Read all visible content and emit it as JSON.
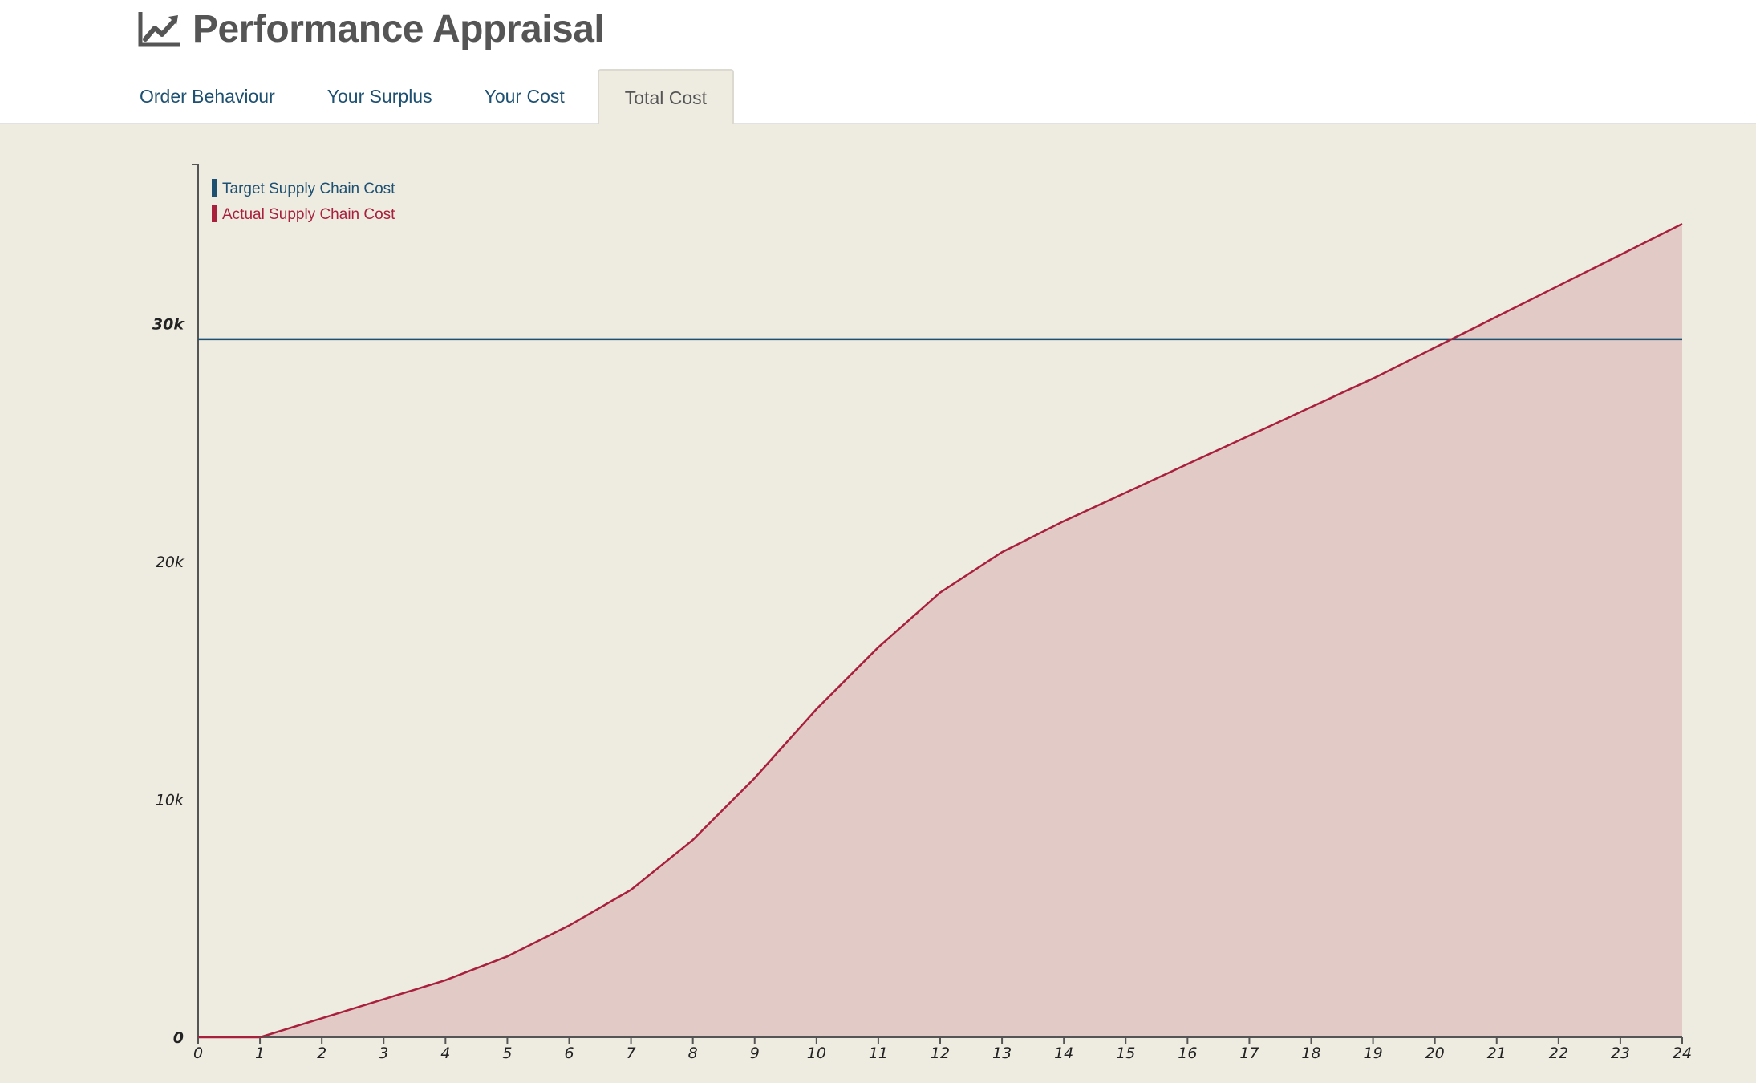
{
  "header": {
    "title": "Performance Appraisal",
    "title_icon": "line-chart-icon"
  },
  "tabs": [
    {
      "label": "Order Behaviour",
      "active": false
    },
    {
      "label": "Your Surplus",
      "active": false
    },
    {
      "label": "Your Cost",
      "active": false
    },
    {
      "label": "Total Cost",
      "active": true
    }
  ],
  "colors": {
    "target": "#1d5071",
    "actual": "#a8203c",
    "actual_fill": "#e2cbc7",
    "background": "#eeebe1",
    "axis": "#555555"
  },
  "chart_data": {
    "type": "area",
    "title": "",
    "xlabel": "",
    "ylabel": "",
    "x": [
      0,
      1,
      2,
      3,
      4,
      5,
      6,
      7,
      8,
      9,
      10,
      11,
      12,
      13,
      14,
      15,
      16,
      17,
      18,
      19,
      20,
      21,
      22,
      23,
      24
    ],
    "xlim": [
      0,
      24
    ],
    "ylim": [
      0,
      36700
    ],
    "y_ticks": [
      {
        "value": 0,
        "label": "0"
      },
      {
        "value": 10000,
        "label": "10k"
      },
      {
        "value": 20000,
        "label": "20k"
      },
      {
        "value": 30000,
        "label": "30k"
      }
    ],
    "x_tick_labels": [
      "0",
      "1",
      "2",
      "3",
      "4",
      "5",
      "6",
      "7",
      "8",
      "9",
      "10",
      "11",
      "12",
      "13",
      "14",
      "15",
      "16",
      "17",
      "18",
      "19",
      "20",
      "21",
      "22",
      "23",
      "24"
    ],
    "legend_position": "top-left",
    "grid": false,
    "series": [
      {
        "name": "Target Supply Chain Cost",
        "kind": "line",
        "values": [
          29350,
          29350,
          29350,
          29350,
          29350,
          29350,
          29350,
          29350,
          29350,
          29350,
          29350,
          29350,
          29350,
          29350,
          29350,
          29350,
          29350,
          29350,
          29350,
          29350,
          29350,
          29350,
          29350,
          29350,
          29350
        ]
      },
      {
        "name": "Actual Supply Chain Cost",
        "kind": "area",
        "values": [
          0,
          0,
          800,
          1600,
          2400,
          3400,
          4700,
          6200,
          8300,
          10900,
          13800,
          16400,
          18700,
          20400,
          21700,
          22900,
          24100,
          25300,
          26500,
          27700,
          29000,
          30300,
          31600,
          32900,
          34200
        ]
      }
    ]
  }
}
